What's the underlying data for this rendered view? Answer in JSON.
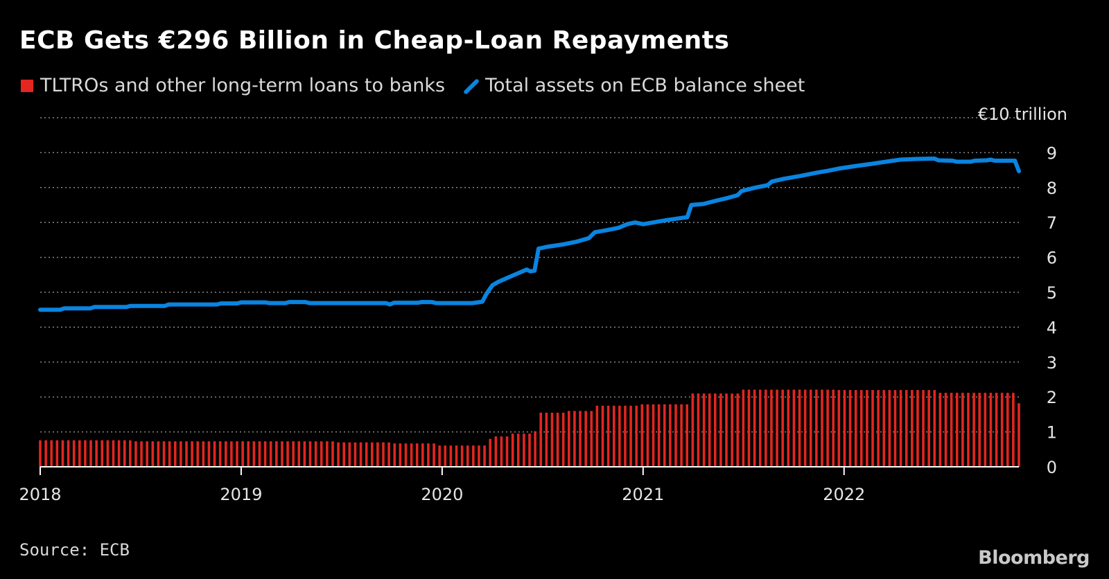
{
  "title": "ECB Gets €296 Billion in Cheap-Loan Repayments",
  "legend": [
    {
      "label": "TLTROs and other long-term loans to banks",
      "color": "#e3261f",
      "shape": "square"
    },
    {
      "label": "Total assets on ECB balance sheet",
      "color": "#0a84e0",
      "shape": "line"
    }
  ],
  "source": "Source: ECB",
  "brand": "Bloomberg",
  "chart_data": {
    "type": "bar+line",
    "yunit_label": "€10 trillion",
    "ylim": [
      0,
      10
    ],
    "yticks": [
      {
        "value": 0,
        "label": "0"
      },
      {
        "value": 1,
        "label": "1"
      },
      {
        "value": 2,
        "label": "2"
      },
      {
        "value": 3,
        "label": "3"
      },
      {
        "value": 4,
        "label": "4"
      },
      {
        "value": 5,
        "label": "5"
      },
      {
        "value": 6,
        "label": "6"
      },
      {
        "value": 7,
        "label": "7"
      },
      {
        "value": 8,
        "label": "8"
      },
      {
        "value": 9,
        "label": "9"
      }
    ],
    "xlim": [
      2018.0,
      2022.87
    ],
    "xticks": [
      {
        "value": 2018,
        "label": "2018"
      },
      {
        "value": 2019,
        "label": "2019"
      },
      {
        "value": 2020,
        "label": "2020"
      },
      {
        "value": 2021,
        "label": "2021"
      },
      {
        "value": 2022,
        "label": "2022"
      }
    ],
    "grid": true,
    "series": [
      {
        "name": "TLTROs and other long-term loans to banks",
        "kind": "bar",
        "color": "#e3261f",
        "points": [
          [
            2018.0,
            0.76
          ],
          [
            2018.45,
            0.76
          ],
          [
            2018.47,
            0.73
          ],
          [
            2019.45,
            0.73
          ],
          [
            2019.47,
            0.7
          ],
          [
            2019.72,
            0.7
          ],
          [
            2019.74,
            0.67
          ],
          [
            2019.95,
            0.67
          ],
          [
            2019.97,
            0.61
          ],
          [
            2020.2,
            0.61
          ],
          [
            2020.22,
            0.8
          ],
          [
            2020.24,
            0.87
          ],
          [
            2020.33,
            0.95
          ],
          [
            2020.45,
            1.02
          ],
          [
            2020.47,
            1.55
          ],
          [
            2020.59,
            1.55
          ],
          [
            2020.61,
            1.6
          ],
          [
            2020.74,
            1.6
          ],
          [
            2020.76,
            1.75
          ],
          [
            2020.95,
            1.75
          ],
          [
            2020.97,
            1.79
          ],
          [
            2021.22,
            1.79
          ],
          [
            2021.24,
            2.1
          ],
          [
            2021.47,
            2.1
          ],
          [
            2021.49,
            2.21
          ],
          [
            2021.95,
            2.21
          ],
          [
            2021.97,
            2.2
          ],
          [
            2022.45,
            2.2
          ],
          [
            2022.47,
            2.12
          ],
          [
            2022.85,
            2.12
          ],
          [
            2022.87,
            1.82
          ]
        ]
      },
      {
        "name": "Total assets on ECB balance sheet",
        "kind": "line",
        "color": "#0a84e0",
        "points": [
          [
            2018.0,
            4.5
          ],
          [
            2018.1,
            4.5
          ],
          [
            2018.12,
            4.54
          ],
          [
            2018.25,
            4.54
          ],
          [
            2018.27,
            4.58
          ],
          [
            2018.43,
            4.58
          ],
          [
            2018.45,
            4.61
          ],
          [
            2018.62,
            4.61
          ],
          [
            2018.64,
            4.65
          ],
          [
            2018.88,
            4.65
          ],
          [
            2018.9,
            4.68
          ],
          [
            2018.98,
            4.68
          ],
          [
            2019.0,
            4.71
          ],
          [
            2019.12,
            4.71
          ],
          [
            2019.14,
            4.69
          ],
          [
            2019.22,
            4.69
          ],
          [
            2019.24,
            4.72
          ],
          [
            2019.32,
            4.72
          ],
          [
            2019.34,
            4.69
          ],
          [
            2019.72,
            4.69
          ],
          [
            2019.74,
            4.65
          ],
          [
            2019.76,
            4.7
          ],
          [
            2019.88,
            4.7
          ],
          [
            2019.9,
            4.72
          ],
          [
            2019.95,
            4.72
          ],
          [
            2019.97,
            4.69
          ],
          [
            2020.15,
            4.69
          ],
          [
            2020.2,
            4.73
          ],
          [
            2020.22,
            4.95
          ],
          [
            2020.25,
            5.2
          ],
          [
            2020.28,
            5.3
          ],
          [
            2020.32,
            5.4
          ],
          [
            2020.36,
            5.5
          ],
          [
            2020.4,
            5.6
          ],
          [
            2020.42,
            5.65
          ],
          [
            2020.44,
            5.6
          ],
          [
            2020.46,
            5.62
          ],
          [
            2020.48,
            6.25
          ],
          [
            2020.52,
            6.3
          ],
          [
            2020.6,
            6.37
          ],
          [
            2020.67,
            6.45
          ],
          [
            2020.73,
            6.55
          ],
          [
            2020.76,
            6.72
          ],
          [
            2020.82,
            6.78
          ],
          [
            2020.88,
            6.85
          ],
          [
            2020.92,
            6.95
          ],
          [
            2020.96,
            7.0
          ],
          [
            2021.0,
            6.95
          ],
          [
            2021.05,
            7.0
          ],
          [
            2021.12,
            7.07
          ],
          [
            2021.18,
            7.12
          ],
          [
            2021.22,
            7.15
          ],
          [
            2021.24,
            7.5
          ],
          [
            2021.3,
            7.53
          ],
          [
            2021.36,
            7.62
          ],
          [
            2021.42,
            7.7
          ],
          [
            2021.47,
            7.78
          ],
          [
            2021.49,
            7.9
          ],
          [
            2021.56,
            8.0
          ],
          [
            2021.62,
            8.07
          ],
          [
            2021.64,
            8.17
          ],
          [
            2021.7,
            8.25
          ],
          [
            2021.78,
            8.33
          ],
          [
            2021.86,
            8.42
          ],
          [
            2021.92,
            8.48
          ],
          [
            2021.98,
            8.55
          ],
          [
            2022.06,
            8.62
          ],
          [
            2022.14,
            8.68
          ],
          [
            2022.22,
            8.75
          ],
          [
            2022.28,
            8.8
          ],
          [
            2022.36,
            8.82
          ],
          [
            2022.45,
            8.83
          ],
          [
            2022.47,
            8.78
          ],
          [
            2022.54,
            8.77
          ],
          [
            2022.56,
            8.74
          ],
          [
            2022.63,
            8.74
          ],
          [
            2022.65,
            8.77
          ],
          [
            2022.71,
            8.78
          ],
          [
            2022.73,
            8.8
          ],
          [
            2022.75,
            8.77
          ],
          [
            2022.85,
            8.77
          ],
          [
            2022.87,
            8.47
          ]
        ]
      }
    ]
  }
}
